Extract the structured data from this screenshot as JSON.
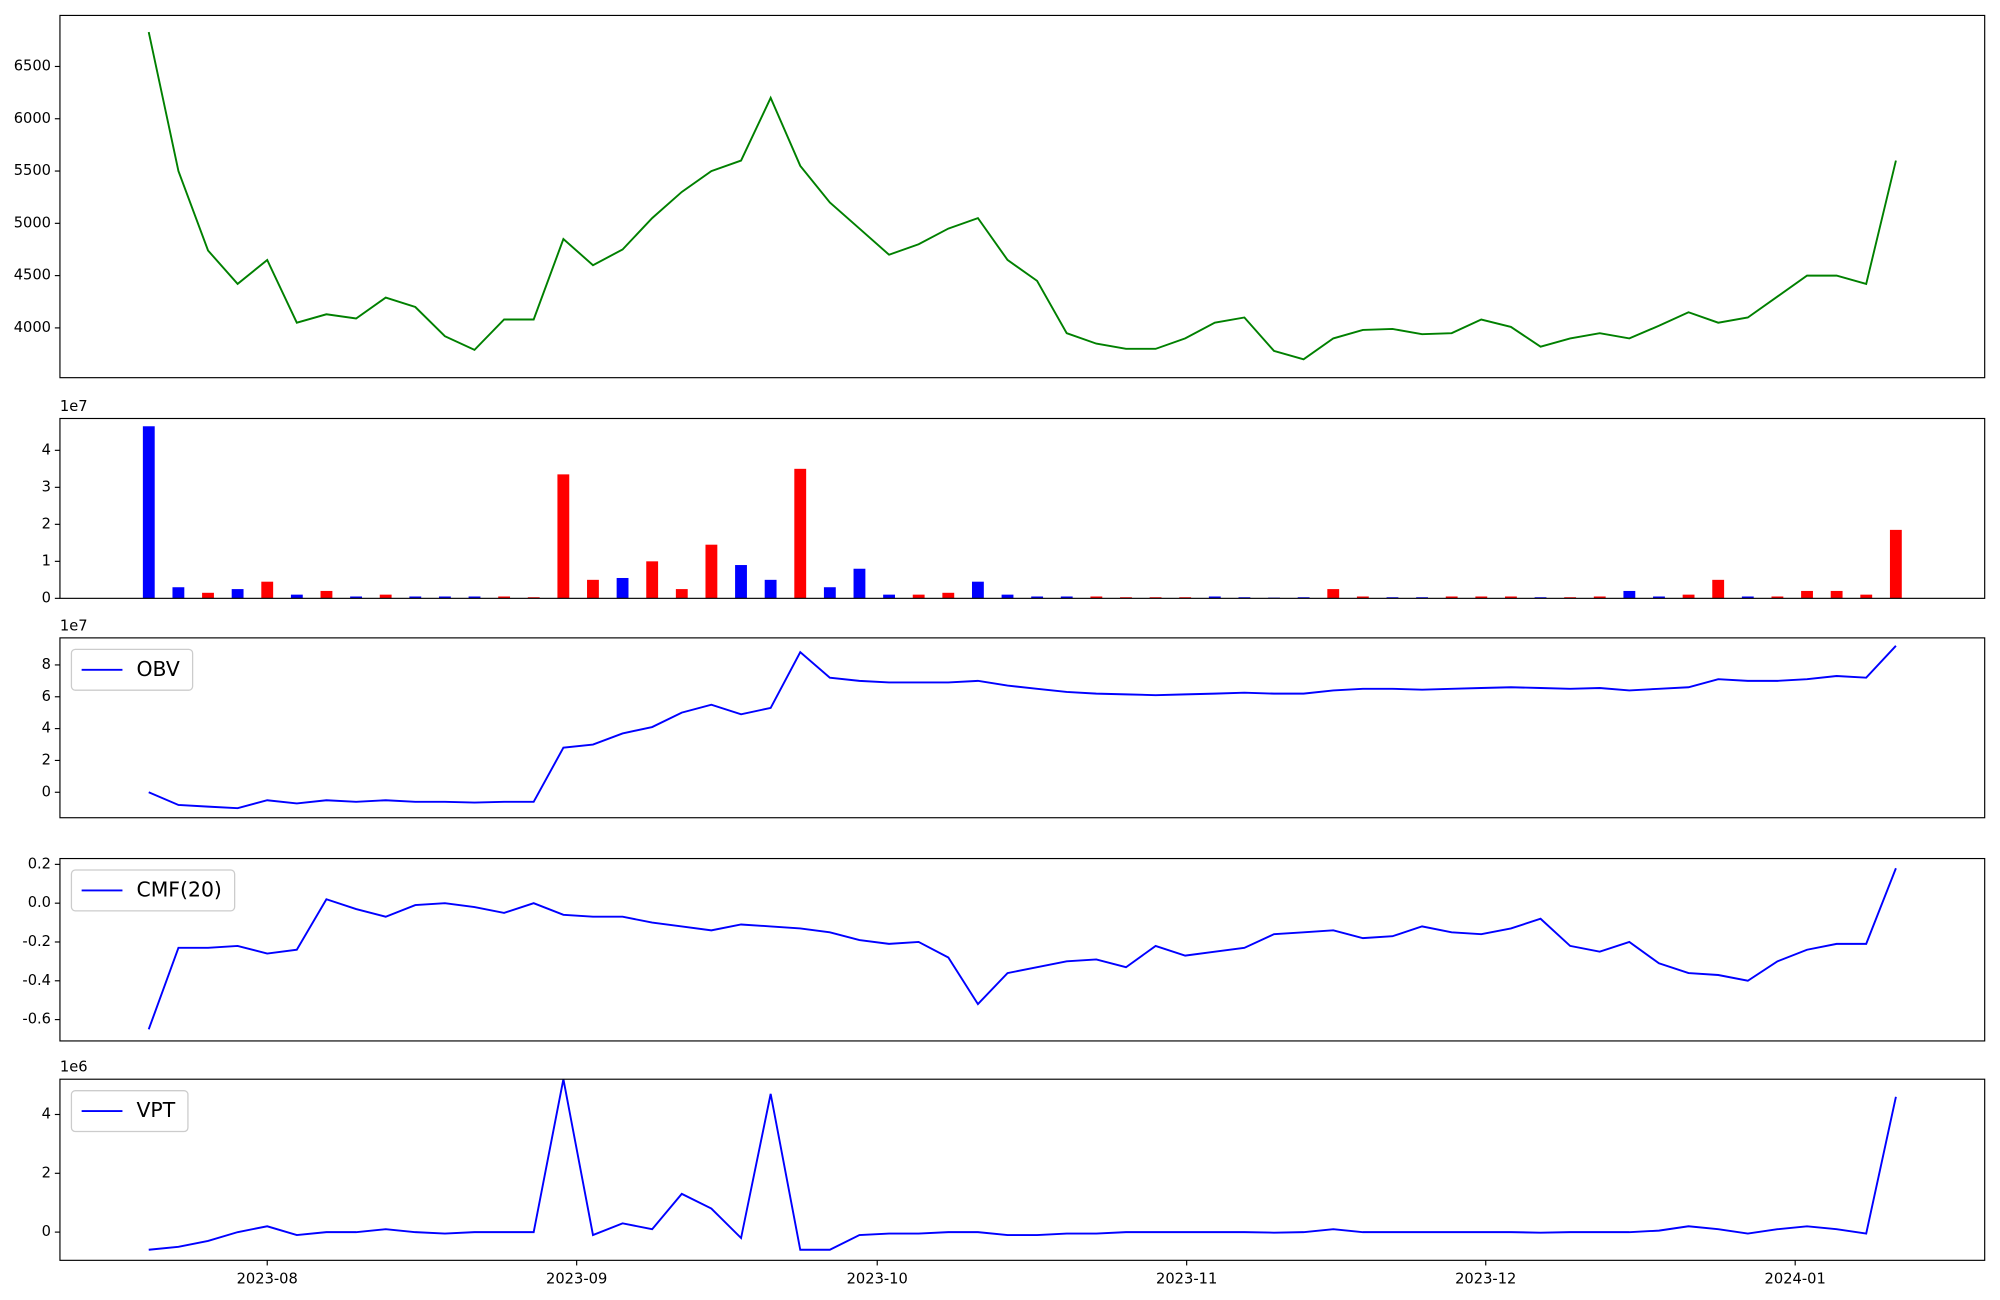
{
  "chart_data": [
    {
      "type": "line",
      "color": "green",
      "xlim": [
        -3,
        62
      ],
      "ylim": [
        3524,
        6988
      ],
      "yticks": [
        4000,
        4500,
        5000,
        5500,
        6000,
        6500
      ],
      "values": [
        6830,
        5500,
        4740,
        4420,
        4650,
        4050,
        4130,
        4090,
        4290,
        4200,
        3920,
        3790,
        4080,
        4080,
        4850,
        4600,
        4750,
        5050,
        5300,
        5500,
        5600,
        6200,
        5550,
        5200,
        4950,
        4700,
        4800,
        4950,
        5050,
        4650,
        4450,
        3950,
        3850,
        3800,
        3800,
        3900,
        4050,
        4100,
        3780,
        3700,
        3900,
        3980,
        3990,
        3940,
        3950,
        4080,
        4010,
        3820,
        3900,
        3950,
        3900,
        4020,
        4150,
        4050,
        4100,
        4300,
        4500,
        4500,
        4420,
        5600
      ]
    },
    {
      "type": "bar",
      "offset_label": "1e7",
      "xlim": [
        -3,
        62
      ],
      "ylim": [
        0,
        4.86
      ],
      "yticks": [
        0,
        1,
        2,
        3,
        4
      ],
      "values": [
        4.65,
        0.3,
        0.15,
        0.25,
        0.45,
        0.1,
        0.2,
        0.05,
        0.1,
        0.05,
        0.05,
        0.05,
        0.05,
        0.03,
        3.35,
        0.5,
        0.55,
        1.0,
        0.25,
        1.45,
        0.9,
        0.5,
        3.5,
        0.3,
        0.8,
        0.1,
        0.1,
        0.15,
        0.45,
        0.1,
        0.05,
        0.05,
        0.05,
        0.03,
        0.03,
        0.03,
        0.05,
        0.03,
        0.02,
        0.03,
        0.25,
        0.05,
        0.03,
        0.03,
        0.05,
        0.05,
        0.05,
        0.03,
        0.03,
        0.05,
        0.2,
        0.05,
        0.1,
        0.5,
        0.05,
        0.05,
        0.2,
        0.2,
        0.1,
        1.85
      ],
      "colors": [
        "blue",
        "blue",
        "red",
        "blue",
        "red",
        "blue",
        "red",
        "blue",
        "red",
        "blue",
        "blue",
        "blue",
        "red",
        "red",
        "red",
        "red",
        "blue",
        "red",
        "red",
        "red",
        "blue",
        "blue",
        "red",
        "blue",
        "blue",
        "blue",
        "red",
        "red",
        "blue",
        "blue",
        "blue",
        "blue",
        "red",
        "red",
        "red",
        "red",
        "blue",
        "blue",
        "blue",
        "blue",
        "red",
        "red",
        "blue",
        "blue",
        "red",
        "red",
        "red",
        "blue",
        "red",
        "red",
        "blue",
        "blue",
        "red",
        "red",
        "blue",
        "red",
        "red",
        "red",
        "red",
        "red"
      ]
    },
    {
      "type": "line",
      "offset_label": "1e7",
      "legend": "upper left",
      "xlim": [
        -3,
        62
      ],
      "ylim": [
        -1.6,
        9.7
      ],
      "yticks": [
        0,
        2,
        4,
        6,
        8
      ],
      "series": [
        {
          "name": "OBV",
          "color": "blue",
          "values": [
            0,
            -0.8,
            -0.9,
            -1.0,
            -0.5,
            -0.7,
            -0.5,
            -0.6,
            -0.5,
            -0.6,
            -0.6,
            -0.65,
            -0.6,
            -0.6,
            2.8,
            3.0,
            3.7,
            4.1,
            5.0,
            5.5,
            4.9,
            5.3,
            8.8,
            7.2,
            7.0,
            6.9,
            6.9,
            6.9,
            7.0,
            6.7,
            6.5,
            6.3,
            6.2,
            6.15,
            6.1,
            6.15,
            6.2,
            6.25,
            6.2,
            6.2,
            6.4,
            6.5,
            6.5,
            6.45,
            6.5,
            6.55,
            6.6,
            6.55,
            6.5,
            6.55,
            6.4,
            6.5,
            6.6,
            7.1,
            7.0,
            7.0,
            7.1,
            7.3,
            7.2,
            9.2
          ]
        }
      ]
    },
    {
      "type": "line",
      "legend": "upper left",
      "xlim": [
        -3,
        62
      ],
      "ylim": [
        -0.71,
        0.23
      ],
      "yticks": [
        -0.6,
        -0.4,
        -0.2,
        {
          "value": 0,
          "label": "0.0"
        },
        0.2
      ],
      "series": [
        {
          "name": "CMF(20)",
          "color": "blue",
          "values": [
            -0.65,
            -0.23,
            -0.23,
            -0.22,
            -0.26,
            -0.24,
            0.02,
            -0.03,
            -0.07,
            -0.01,
            0.0,
            -0.02,
            -0.05,
            0.0,
            -0.06,
            -0.07,
            -0.07,
            -0.1,
            -0.12,
            -0.14,
            -0.11,
            -0.12,
            -0.13,
            -0.15,
            -0.19,
            -0.21,
            -0.2,
            -0.28,
            -0.52,
            -0.36,
            -0.33,
            -0.3,
            -0.29,
            -0.33,
            -0.22,
            -0.27,
            -0.25,
            -0.23,
            -0.16,
            -0.15,
            -0.14,
            -0.18,
            -0.17,
            -0.12,
            -0.15,
            -0.16,
            -0.13,
            -0.08,
            -0.22,
            -0.25,
            -0.2,
            -0.31,
            -0.36,
            -0.37,
            -0.4,
            -0.3,
            -0.24,
            -0.21,
            -0.21,
            0.18
          ]
        }
      ]
    },
    {
      "type": "line",
      "offset_label": "1e6",
      "legend": "upper left",
      "xlim": [
        -3,
        62
      ],
      "ylim": [
        -0.96,
        5.2
      ],
      "yticks": [
        0,
        2,
        4
      ],
      "xticks": [
        {
          "value": 4.0,
          "label": "2023-08"
        },
        {
          "value": 14.45,
          "label": "2023-09"
        },
        {
          "value": 24.6,
          "label": "2023-10"
        },
        {
          "value": 35.05,
          "label": "2023-11"
        },
        {
          "value": 45.15,
          "label": "2023-12"
        },
        {
          "value": 55.6,
          "label": "2024-01"
        }
      ],
      "series": [
        {
          "name": "VPT",
          "color": "blue",
          "values": [
            -0.6,
            -0.5,
            -0.3,
            0.0,
            0.2,
            -0.1,
            0.0,
            0.0,
            0.1,
            0.0,
            -0.05,
            0.0,
            0.0,
            0.0,
            5.2,
            -0.1,
            0.3,
            0.1,
            1.3,
            0.8,
            -0.2,
            4.7,
            -0.6,
            -0.6,
            -0.1,
            -0.05,
            -0.05,
            0.0,
            0.0,
            -0.1,
            -0.1,
            -0.05,
            -0.05,
            0.0,
            0.0,
            0.0,
            0.0,
            0.0,
            -0.02,
            0.0,
            0.1,
            0.0,
            0.0,
            0.0,
            0.0,
            0.0,
            0.0,
            -0.02,
            0.0,
            0.0,
            0.0,
            0.05,
            0.2,
            0.1,
            -0.05,
            0.1,
            0.2,
            0.1,
            -0.05,
            4.6
          ]
        }
      ]
    }
  ]
}
